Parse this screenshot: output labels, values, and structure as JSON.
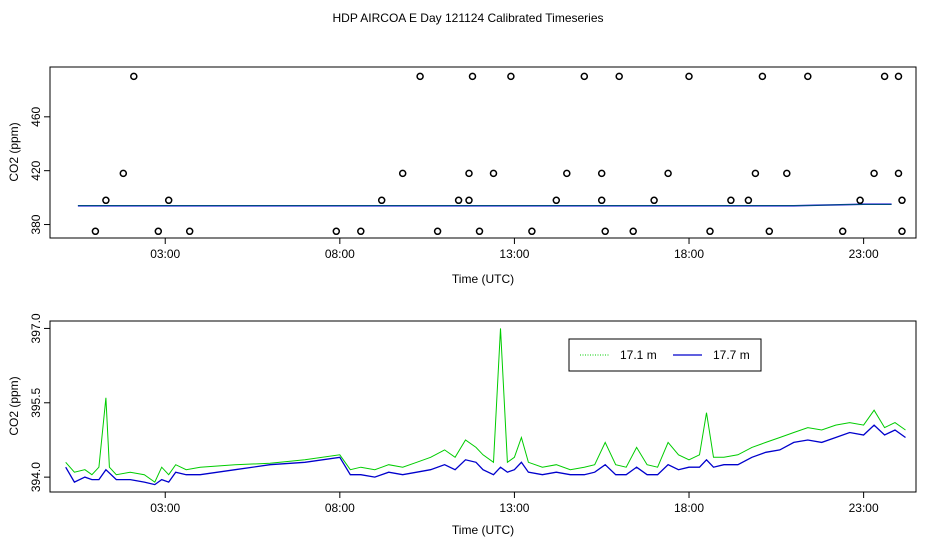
{
  "figure": {
    "title": "HDP AIRCOA E  Day 121124  Calibrated Timeseries"
  },
  "colors": {
    "series_17_1": "#00cc00",
    "series_17_7": "#0000cc",
    "circles": "#000000"
  },
  "chart_data": [
    {
      "type": "scatter",
      "title": "",
      "xlabel": "Time (UTC)",
      "ylabel": "CO2 (ppm)",
      "x_unit": "hours UTC",
      "xlim": [
        -0.3,
        24.5
      ],
      "ylim": [
        370,
        497
      ],
      "x_tick_values": [
        3,
        8,
        13,
        18,
        23
      ],
      "x_tick_labels": [
        "03:00",
        "08:00",
        "13:00",
        "18:00",
        "23:00"
      ],
      "y_tick_values": [
        380,
        420,
        460
      ],
      "y_tick_labels": [
        "380",
        "420",
        "460"
      ],
      "grid": false,
      "series": [
        {
          "values_note": "",
          "line": [
            [
              0.5,
              394
            ],
            [
              2,
              394
            ],
            [
              3,
              394
            ],
            [
              5,
              394
            ],
            [
              7,
              394
            ],
            [
              8,
              394
            ],
            [
              10,
              394
            ],
            [
              12,
              394
            ],
            [
              13,
              394
            ],
            [
              15,
              394
            ],
            [
              17,
              394
            ],
            [
              19,
              394
            ],
            [
              21,
              394
            ],
            [
              23,
              395
            ],
            [
              23.8,
              395
            ]
          ]
        }
      ],
      "circles": [
        [
          1.0,
          375
        ],
        [
          1.3,
          398
        ],
        [
          1.8,
          418
        ],
        [
          2.1,
          490
        ],
        [
          2.8,
          375
        ],
        [
          3.1,
          398
        ],
        [
          3.7,
          375
        ],
        [
          7.9,
          375
        ],
        [
          8.6,
          375
        ],
        [
          9.2,
          398
        ],
        [
          9.8,
          418
        ],
        [
          10.3,
          490
        ],
        [
          10.8,
          375
        ],
        [
          11.4,
          398
        ],
        [
          11.7,
          418
        ],
        [
          11.7,
          398
        ],
        [
          11.8,
          490
        ],
        [
          12.0,
          375
        ],
        [
          12.4,
          418
        ],
        [
          12.9,
          490
        ],
        [
          13.5,
          375
        ],
        [
          14.2,
          398
        ],
        [
          14.5,
          418
        ],
        [
          15.0,
          490
        ],
        [
          15.5,
          418
        ],
        [
          15.5,
          398
        ],
        [
          15.6,
          375
        ],
        [
          16.0,
          490
        ],
        [
          16.4,
          375
        ],
        [
          17.0,
          398
        ],
        [
          17.4,
          418
        ],
        [
          18.0,
          490
        ],
        [
          18.6,
          375
        ],
        [
          19.2,
          398
        ],
        [
          19.7,
          398
        ],
        [
          19.9,
          418
        ],
        [
          20.3,
          375
        ],
        [
          20.1,
          490
        ],
        [
          20.8,
          418
        ],
        [
          21.4,
          490
        ],
        [
          22.4,
          375
        ],
        [
          22.9,
          398
        ],
        [
          23.3,
          418
        ],
        [
          23.6,
          490
        ],
        [
          24.0,
          490
        ],
        [
          24.0,
          418
        ],
        [
          24.1,
          398
        ],
        [
          24.1,
          375
        ]
      ]
    },
    {
      "type": "line",
      "title": "",
      "xlabel": "Time (UTC)",
      "ylabel": "CO2 (ppm)",
      "x_unit": "hours UTC",
      "xlim": [
        -0.3,
        24.5
      ],
      "ylim": [
        393.7,
        397.15
      ],
      "x_tick_values": [
        3,
        8,
        13,
        18,
        23
      ],
      "x_tick_labels": [
        "03:00",
        "08:00",
        "13:00",
        "18:00",
        "23:00"
      ],
      "y_tick_values": [
        394.0,
        395.5,
        397.0
      ],
      "y_tick_labels": [
        "394.0",
        "395.5",
        "397.0"
      ],
      "grid": false,
      "legend": "top-right",
      "series": [
        {
          "name": "17.1 m",
          "color": "#00cc00",
          "points": [
            [
              0.15,
              394.3
            ],
            [
              0.4,
              394.1
            ],
            [
              0.7,
              394.15
            ],
            [
              0.9,
              394.05
            ],
            [
              1.1,
              394.2
            ],
            [
              1.3,
              395.6
            ],
            [
              1.4,
              394.2
            ],
            [
              1.6,
              394.05
            ],
            [
              2.0,
              394.1
            ],
            [
              2.4,
              394.05
            ],
            [
              2.7,
              393.9
            ],
            [
              2.9,
              394.2
            ],
            [
              3.1,
              394.05
            ],
            [
              3.3,
              394.25
            ],
            [
              3.6,
              394.15
            ],
            [
              4.0,
              394.2
            ],
            [
              5.0,
              394.25
            ],
            [
              6.0,
              394.28
            ],
            [
              7.0,
              394.35
            ],
            [
              8.0,
              394.45
            ],
            [
              8.3,
              394.15
            ],
            [
              8.6,
              394.2
            ],
            [
              9.0,
              394.15
            ],
            [
              9.4,
              394.25
            ],
            [
              9.8,
              394.2
            ],
            [
              10.2,
              394.3
            ],
            [
              10.6,
              394.4
            ],
            [
              11.0,
              394.55
            ],
            [
              11.3,
              394.4
            ],
            [
              11.6,
              394.75
            ],
            [
              11.9,
              394.6
            ],
            [
              12.1,
              394.45
            ],
            [
              12.4,
              394.3
            ],
            [
              12.6,
              397.0
            ],
            [
              12.8,
              394.3
            ],
            [
              13.0,
              394.4
            ],
            [
              13.2,
              394.8
            ],
            [
              13.4,
              394.3
            ],
            [
              13.8,
              394.2
            ],
            [
              14.2,
              394.25
            ],
            [
              14.6,
              394.15
            ],
            [
              15.0,
              394.2
            ],
            [
              15.3,
              394.25
            ],
            [
              15.6,
              394.7
            ],
            [
              15.9,
              394.25
            ],
            [
              16.2,
              394.2
            ],
            [
              16.5,
              394.6
            ],
            [
              16.8,
              394.25
            ],
            [
              17.1,
              394.2
            ],
            [
              17.4,
              394.7
            ],
            [
              17.7,
              394.45
            ],
            [
              18.0,
              394.35
            ],
            [
              18.3,
              394.45
            ],
            [
              18.5,
              395.3
            ],
            [
              18.7,
              394.4
            ],
            [
              19.0,
              394.4
            ],
            [
              19.4,
              394.45
            ],
            [
              19.8,
              394.6
            ],
            [
              20.2,
              394.7
            ],
            [
              20.6,
              394.8
            ],
            [
              21.0,
              394.9
            ],
            [
              21.4,
              395.0
            ],
            [
              21.8,
              394.95
            ],
            [
              22.2,
              395.05
            ],
            [
              22.6,
              395.1
            ],
            [
              23.0,
              395.05
            ],
            [
              23.3,
              395.35
            ],
            [
              23.6,
              395.0
            ],
            [
              23.9,
              395.1
            ],
            [
              24.2,
              394.95
            ]
          ]
        },
        {
          "name": "17.7 m",
          "color": "#0000cc",
          "points": [
            [
              0.15,
              394.2
            ],
            [
              0.4,
              393.9
            ],
            [
              0.7,
              394.0
            ],
            [
              0.9,
              393.95
            ],
            [
              1.1,
              393.95
            ],
            [
              1.3,
              394.15
            ],
            [
              1.6,
              393.95
            ],
            [
              2.0,
              393.95
            ],
            [
              2.4,
              393.9
            ],
            [
              2.7,
              393.85
            ],
            [
              2.9,
              393.95
            ],
            [
              3.1,
              393.9
            ],
            [
              3.3,
              394.1
            ],
            [
              3.6,
              394.05
            ],
            [
              4.0,
              394.05
            ],
            [
              5.0,
              394.15
            ],
            [
              6.0,
              394.25
            ],
            [
              7.0,
              394.3
            ],
            [
              8.0,
              394.4
            ],
            [
              8.3,
              394.05
            ],
            [
              8.6,
              394.05
            ],
            [
              9.0,
              394.0
            ],
            [
              9.4,
              394.1
            ],
            [
              9.8,
              394.05
            ],
            [
              10.2,
              394.1
            ],
            [
              10.6,
              394.15
            ],
            [
              11.0,
              394.25
            ],
            [
              11.3,
              394.15
            ],
            [
              11.6,
              394.35
            ],
            [
              11.9,
              394.3
            ],
            [
              12.1,
              394.15
            ],
            [
              12.4,
              394.05
            ],
            [
              12.6,
              394.2
            ],
            [
              12.8,
              394.1
            ],
            [
              13.0,
              394.15
            ],
            [
              13.2,
              394.3
            ],
            [
              13.4,
              394.1
            ],
            [
              13.8,
              394.05
            ],
            [
              14.2,
              394.1
            ],
            [
              14.6,
              394.05
            ],
            [
              15.0,
              394.05
            ],
            [
              15.3,
              394.1
            ],
            [
              15.6,
              394.25
            ],
            [
              15.9,
              394.05
            ],
            [
              16.2,
              394.05
            ],
            [
              16.5,
              394.2
            ],
            [
              16.8,
              394.05
            ],
            [
              17.1,
              394.05
            ],
            [
              17.4,
              394.25
            ],
            [
              17.7,
              394.15
            ],
            [
              18.0,
              394.2
            ],
            [
              18.3,
              394.2
            ],
            [
              18.5,
              394.35
            ],
            [
              18.7,
              394.2
            ],
            [
              19.0,
              394.25
            ],
            [
              19.4,
              394.25
            ],
            [
              19.8,
              394.4
            ],
            [
              20.2,
              394.5
            ],
            [
              20.6,
              394.55
            ],
            [
              21.0,
              394.7
            ],
            [
              21.4,
              394.75
            ],
            [
              21.8,
              394.7
            ],
            [
              22.2,
              394.8
            ],
            [
              22.6,
              394.9
            ],
            [
              23.0,
              394.85
            ],
            [
              23.3,
              395.05
            ],
            [
              23.6,
              394.85
            ],
            [
              23.9,
              394.95
            ],
            [
              24.2,
              394.8
            ]
          ]
        }
      ]
    }
  ]
}
